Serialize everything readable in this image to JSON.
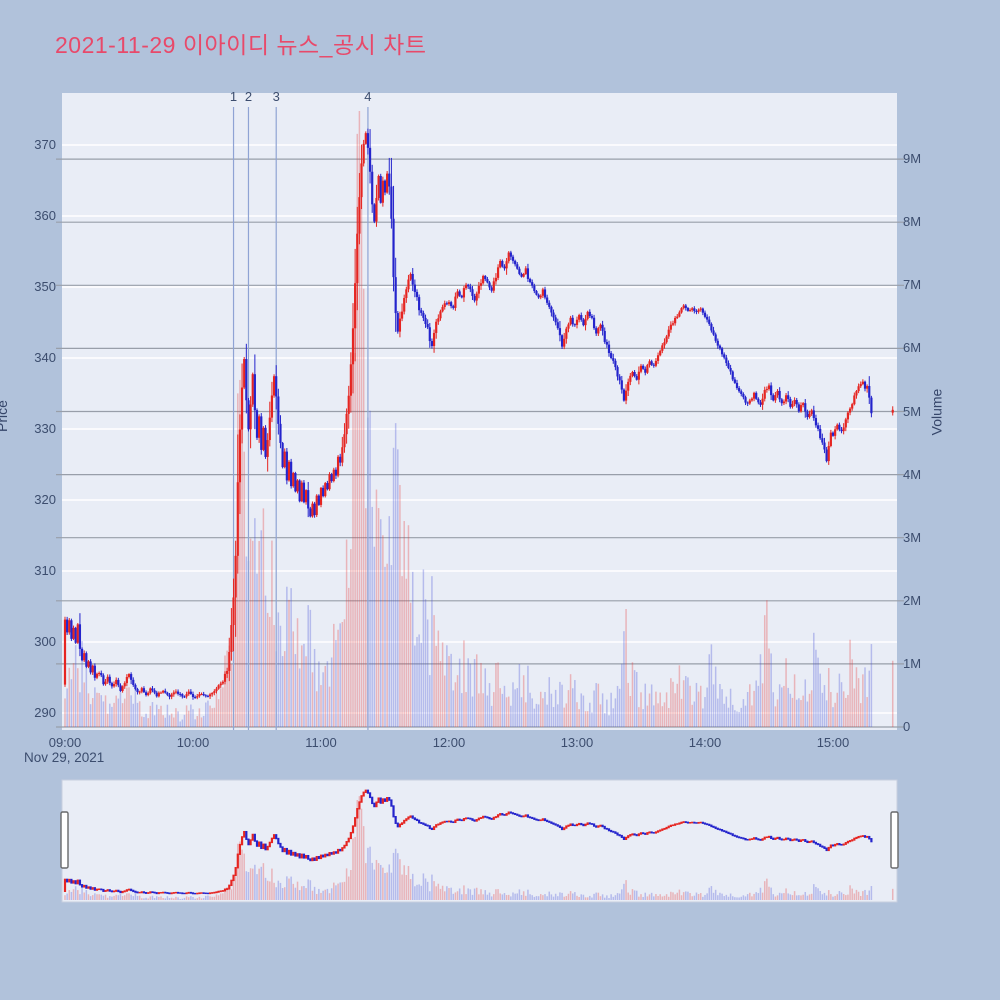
{
  "title": {
    "text": "2021-11-29 이아이디 뉴스_공시 차트",
    "color": "#e8496a"
  },
  "date_label": "Nov 29, 2021",
  "axes": {
    "price": {
      "title": "Price",
      "ticks": [
        "290",
        "300",
        "310",
        "320",
        "330",
        "340",
        "350",
        "360",
        "370"
      ]
    },
    "volume": {
      "title": "Volume",
      "ticks": [
        "0",
        "1M",
        "2M",
        "3M",
        "4M",
        "5M",
        "6M",
        "7M",
        "8M",
        "9M"
      ]
    },
    "time": {
      "ticks": [
        "09:00",
        "10:00",
        "11:00",
        "12:00",
        "13:00",
        "14:00",
        "15:00"
      ]
    }
  },
  "markers": [
    {
      "label": "1",
      "minute": 79
    },
    {
      "label": "2",
      "minute": 86
    },
    {
      "label": "3",
      "minute": 99
    },
    {
      "label": "4",
      "minute": 142
    }
  ],
  "colors": {
    "up": "#e52521",
    "down": "#2424cc",
    "up_volume": "rgba(229,60,60,0.32)",
    "down_volume": "rgba(70,80,215,0.32)",
    "background": "#b1c2db",
    "plot_background": "#e9edf6",
    "grid_price": "#ffffff",
    "grid_volume": "#989ea9",
    "marker_line": "#8fa3d4",
    "tick_text": "#3c4d6e",
    "title": "#e8496a"
  },
  "chart_data": {
    "type": "candlestick+volume",
    "title": "2021-11-29 이아이디 뉴스_공시 차트",
    "x_unit": "minutes since 09:00",
    "x_range_minutes": [
      0,
      390
    ],
    "price_axis_range": [
      288,
      375
    ],
    "volume_axis_range_millions": [
      0,
      9.85
    ],
    "session_high": 372.0,
    "session_low": 291.8,
    "last_price": 332.5,
    "first_candle_open": 294,
    "price_keyframes": [
      [
        0,
        303
      ],
      [
        1,
        301.5
      ],
      [
        2,
        303.3
      ],
      [
        3,
        300.5
      ],
      [
        4,
        302
      ],
      [
        5,
        300
      ],
      [
        6,
        302.3
      ],
      [
        7,
        299.5
      ],
      [
        8,
        297.5
      ],
      [
        9,
        298.5
      ],
      [
        10,
        296.5
      ],
      [
        11,
        297.5
      ],
      [
        12,
        295.5
      ],
      [
        13,
        296.5
      ],
      [
        14,
        294.8
      ],
      [
        16,
        295.8
      ],
      [
        18,
        294.2
      ],
      [
        20,
        295
      ],
      [
        22,
        293.8
      ],
      [
        24,
        294.6
      ],
      [
        26,
        293.2
      ],
      [
        28,
        294
      ],
      [
        30,
        295.6
      ],
      [
        32,
        294
      ],
      [
        34,
        292.8
      ],
      [
        36,
        293.6
      ],
      [
        38,
        292.6
      ],
      [
        40,
        293.4
      ],
      [
        43,
        292.4
      ],
      [
        46,
        293.2
      ],
      [
        49,
        292.3
      ],
      [
        52,
        293
      ],
      [
        55,
        292.3
      ],
      [
        58,
        292.9
      ],
      [
        61,
        292.2
      ],
      [
        64,
        292.8
      ],
      [
        67,
        292.4
      ],
      [
        70,
        293.2
      ],
      [
        72,
        293.8
      ],
      [
        74,
        294.4
      ],
      [
        76,
        296
      ],
      [
        77,
        298
      ],
      [
        78,
        302
      ],
      [
        79,
        306
      ],
      [
        80,
        312
      ],
      [
        81,
        322
      ],
      [
        82,
        330
      ],
      [
        83,
        336
      ],
      [
        84,
        340
      ],
      [
        85,
        334
      ],
      [
        86,
        330
      ],
      [
        87,
        334
      ],
      [
        88,
        337.5
      ],
      [
        89,
        333
      ],
      [
        90,
        329
      ],
      [
        91,
        332
      ],
      [
        92,
        327
      ],
      [
        93,
        330
      ],
      [
        94,
        326
      ],
      [
        95,
        329
      ],
      [
        96,
        332
      ],
      [
        97,
        335
      ],
      [
        98,
        337.5
      ],
      [
        99,
        335
      ],
      [
        100,
        331
      ],
      [
        101,
        328
      ],
      [
        102,
        324.5
      ],
      [
        103,
        327
      ],
      [
        104,
        323
      ],
      [
        105,
        325.5
      ],
      [
        106,
        322
      ],
      [
        107,
        324
      ],
      [
        108,
        321
      ],
      [
        109,
        323
      ],
      [
        110,
        320
      ],
      [
        111,
        322.5
      ],
      [
        112,
        319.5
      ],
      [
        113,
        321.5
      ],
      [
        114,
        318.5
      ],
      [
        115,
        317.5
      ],
      [
        116,
        319.5
      ],
      [
        117,
        318
      ],
      [
        118,
        320.5
      ],
      [
        119,
        319.5
      ],
      [
        120,
        321.5
      ],
      [
        121,
        320.5
      ],
      [
        122,
        322.5
      ],
      [
        123,
        321.5
      ],
      [
        124,
        323.5
      ],
      [
        125,
        322.5
      ],
      [
        126,
        324.5
      ],
      [
        127,
        323.5
      ],
      [
        128,
        326
      ],
      [
        129,
        325
      ],
      [
        130,
        327.5
      ],
      [
        131,
        329
      ],
      [
        132,
        332
      ],
      [
        133,
        335
      ],
      [
        134,
        339
      ],
      [
        135,
        344
      ],
      [
        136,
        350
      ],
      [
        137,
        357
      ],
      [
        138,
        363
      ],
      [
        139,
        368
      ],
      [
        140,
        370.5
      ],
      [
        141,
        371.5
      ],
      [
        142,
        369.5
      ],
      [
        143,
        366
      ],
      [
        144,
        362
      ],
      [
        145,
        359
      ],
      [
        146,
        363
      ],
      [
        147,
        365.5
      ],
      [
        148,
        362
      ],
      [
        149,
        365
      ],
      [
        150,
        363.5
      ],
      [
        151,
        366
      ],
      [
        152,
        364
      ],
      [
        153,
        360
      ],
      [
        154,
        352
      ],
      [
        155,
        346
      ],
      [
        156,
        343.8
      ],
      [
        157,
        345.5
      ],
      [
        158,
        347
      ],
      [
        160,
        350
      ],
      [
        162,
        352
      ],
      [
        164,
        349.5
      ],
      [
        166,
        347
      ],
      [
        168,
        345.5
      ],
      [
        170,
        344
      ],
      [
        172,
        341.5
      ],
      [
        174,
        345
      ],
      [
        176,
        346.5
      ],
      [
        178,
        347.5
      ],
      [
        180,
        348
      ],
      [
        182,
        347
      ],
      [
        184,
        349.5
      ],
      [
        186,
        348.5
      ],
      [
        188,
        350.5
      ],
      [
        190,
        349.5
      ],
      [
        192,
        348
      ],
      [
        194,
        350
      ],
      [
        196,
        351.5
      ],
      [
        198,
        350.5
      ],
      [
        200,
        349.5
      ],
      [
        202,
        351.5
      ],
      [
        204,
        353.5
      ],
      [
        206,
        352.5
      ],
      [
        208,
        355
      ],
      [
        210,
        353.5
      ],
      [
        212,
        352.5
      ],
      [
        214,
        351.5
      ],
      [
        216,
        352.5
      ],
      [
        218,
        350.5
      ],
      [
        220,
        349.5
      ],
      [
        222,
        348.5
      ],
      [
        224,
        349.5
      ],
      [
        226,
        348
      ],
      [
        228,
        346.5
      ],
      [
        230,
        345
      ],
      [
        232,
        343.5
      ],
      [
        233,
        341.5
      ],
      [
        235,
        344
      ],
      [
        237,
        345.5
      ],
      [
        239,
        344.5
      ],
      [
        241,
        346
      ],
      [
        243,
        344.5
      ],
      [
        245,
        346.5
      ],
      [
        247,
        345.5
      ],
      [
        249,
        343.5
      ],
      [
        251,
        344.5
      ],
      [
        253,
        342.5
      ],
      [
        255,
        341
      ],
      [
        257,
        339.5
      ],
      [
        259,
        337.5
      ],
      [
        261,
        335.5
      ],
      [
        262,
        334
      ],
      [
        264,
        336.5
      ],
      [
        266,
        338
      ],
      [
        268,
        337
      ],
      [
        270,
        339
      ],
      [
        272,
        338
      ],
      [
        274,
        339.5
      ],
      [
        276,
        339
      ],
      [
        278,
        340.5
      ],
      [
        280,
        341.5
      ],
      [
        282,
        343
      ],
      [
        284,
        344.5
      ],
      [
        286,
        345.5
      ],
      [
        288,
        346.5
      ],
      [
        290,
        347.3
      ],
      [
        292,
        346.5
      ],
      [
        294,
        347
      ],
      [
        296,
        346.5
      ],
      [
        298,
        347
      ],
      [
        300,
        346
      ],
      [
        302,
        344.5
      ],
      [
        305,
        342.5
      ],
      [
        308,
        340.5
      ],
      [
        311,
        338.5
      ],
      [
        314,
        336.5
      ],
      [
        317,
        334.8
      ],
      [
        320,
        333.5
      ],
      [
        323,
        335
      ],
      [
        326,
        333.5
      ],
      [
        328,
        335.5
      ],
      [
        330,
        336
      ],
      [
        332,
        334
      ],
      [
        334,
        335.5
      ],
      [
        336,
        333.5
      ],
      [
        338,
        334.8
      ],
      [
        340,
        333
      ],
      [
        342,
        334.2
      ],
      [
        344,
        332.5
      ],
      [
        346,
        333.8
      ],
      [
        348,
        331.5
      ],
      [
        350,
        332.8
      ],
      [
        352,
        330.5
      ],
      [
        354,
        329
      ],
      [
        356,
        327
      ],
      [
        357,
        325.6
      ],
      [
        358,
        327.5
      ],
      [
        359,
        329.8
      ],
      [
        360,
        329
      ],
      [
        362,
        330.5
      ],
      [
        364,
        329.5
      ],
      [
        366,
        331.5
      ],
      [
        368,
        333
      ],
      [
        370,
        334.5
      ],
      [
        372,
        335.8
      ],
      [
        374,
        336.6
      ],
      [
        375,
        335.8
      ],
      [
        376,
        336.3
      ],
      [
        377,
        334
      ],
      [
        378,
        332.4
      ]
    ],
    "volume_keyframes_millions": [
      [
        0,
        0.9
      ],
      [
        2,
        0.7
      ],
      [
        4,
        1.0
      ],
      [
        6,
        0.8
      ],
      [
        8,
        1.05
      ],
      [
        10,
        0.7
      ],
      [
        12,
        0.5
      ],
      [
        14,
        0.6
      ],
      [
        16,
        0.4
      ],
      [
        18,
        0.5
      ],
      [
        20,
        0.35
      ],
      [
        24,
        0.45
      ],
      [
        28,
        0.55
      ],
      [
        31,
        0.6
      ],
      [
        34,
        0.4
      ],
      [
        38,
        0.25
      ],
      [
        42,
        0.32
      ],
      [
        46,
        0.2
      ],
      [
        50,
        0.28
      ],
      [
        54,
        0.17
      ],
      [
        58,
        0.26
      ],
      [
        62,
        0.2
      ],
      [
        66,
        0.28
      ],
      [
        70,
        0.42
      ],
      [
        73,
        0.55
      ],
      [
        76,
        0.9
      ],
      [
        78,
        1.8
      ],
      [
        80,
        3.2
      ],
      [
        82,
        5.5
      ],
      [
        84,
        4.0
      ],
      [
        86,
        4.8
      ],
      [
        88,
        3.2
      ],
      [
        90,
        2.6
      ],
      [
        92,
        3.0
      ],
      [
        95,
        2.2
      ],
      [
        98,
        2.6
      ],
      [
        100,
        1.8
      ],
      [
        103,
        1.5
      ],
      [
        106,
        1.8
      ],
      [
        110,
        1.2
      ],
      [
        114,
        1.5
      ],
      [
        118,
        1.0
      ],
      [
        120,
        1.3
      ],
      [
        124,
        0.9
      ],
      [
        128,
        1.3
      ],
      [
        131,
        1.8
      ],
      [
        133,
        2.8
      ],
      [
        135,
        5.0
      ],
      [
        136,
        7.4
      ],
      [
        137,
        9.4
      ],
      [
        138,
        8.6
      ],
      [
        139,
        7.0
      ],
      [
        140,
        5.6
      ],
      [
        141,
        4.5
      ],
      [
        142,
        5.1
      ],
      [
        143,
        3.8
      ],
      [
        144,
        3.1
      ],
      [
        145,
        3.5
      ],
      [
        147,
        2.7
      ],
      [
        149,
        3.0
      ],
      [
        151,
        2.3
      ],
      [
        153,
        2.8
      ],
      [
        154,
        3.7
      ],
      [
        156,
        3.3
      ],
      [
        158,
        2.6
      ],
      [
        160,
        2.9
      ],
      [
        162,
        2.1
      ],
      [
        164,
        2.4
      ],
      [
        166,
        1.7
      ],
      [
        168,
        2.0
      ],
      [
        170,
        1.4
      ],
      [
        172,
        1.8
      ],
      [
        174,
        1.2
      ],
      [
        176,
        1.5
      ],
      [
        178,
        1.0
      ],
      [
        180,
        1.3
      ],
      [
        183,
        0.85
      ],
      [
        186,
        1.05
      ],
      [
        190,
        0.75
      ],
      [
        195,
        0.95
      ],
      [
        200,
        0.65
      ],
      [
        205,
        0.85
      ],
      [
        210,
        0.6
      ],
      [
        215,
        0.75
      ],
      [
        220,
        0.5
      ],
      [
        225,
        0.65
      ],
      [
        230,
        0.45
      ],
      [
        235,
        0.6
      ],
      [
        240,
        0.5
      ],
      [
        245,
        0.38
      ],
      [
        250,
        0.5
      ],
      [
        255,
        0.32
      ],
      [
        260,
        0.7
      ],
      [
        263,
        1.3
      ],
      [
        266,
        0.8
      ],
      [
        270,
        0.45
      ],
      [
        275,
        0.55
      ],
      [
        280,
        0.4
      ],
      [
        285,
        0.6
      ],
      [
        290,
        0.8
      ],
      [
        295,
        0.45
      ],
      [
        300,
        0.55
      ],
      [
        303,
        1.1
      ],
      [
        306,
        0.5
      ],
      [
        310,
        0.6
      ],
      [
        315,
        0.35
      ],
      [
        320,
        0.5
      ],
      [
        325,
        0.65
      ],
      [
        329,
        1.4
      ],
      [
        333,
        0.5
      ],
      [
        337,
        0.7
      ],
      [
        341,
        0.9
      ],
      [
        345,
        0.5
      ],
      [
        349,
        0.6
      ],
      [
        352,
        1.3
      ],
      [
        355,
        0.55
      ],
      [
        358,
        0.75
      ],
      [
        360,
        0.5
      ],
      [
        363,
        0.85
      ],
      [
        366,
        0.6
      ],
      [
        368,
        1.1
      ],
      [
        370,
        0.75
      ],
      [
        372,
        0.6
      ],
      [
        374,
        0.9
      ],
      [
        376,
        0.7
      ],
      [
        378,
        1.2
      ]
    ],
    "closing_auction": {
      "minute": 388,
      "price": 332.5,
      "volume_millions": 1.05
    },
    "event_markers": [
      "1",
      "2",
      "3",
      "4"
    ],
    "rangeslider": true,
    "grid": true,
    "legend": false
  }
}
